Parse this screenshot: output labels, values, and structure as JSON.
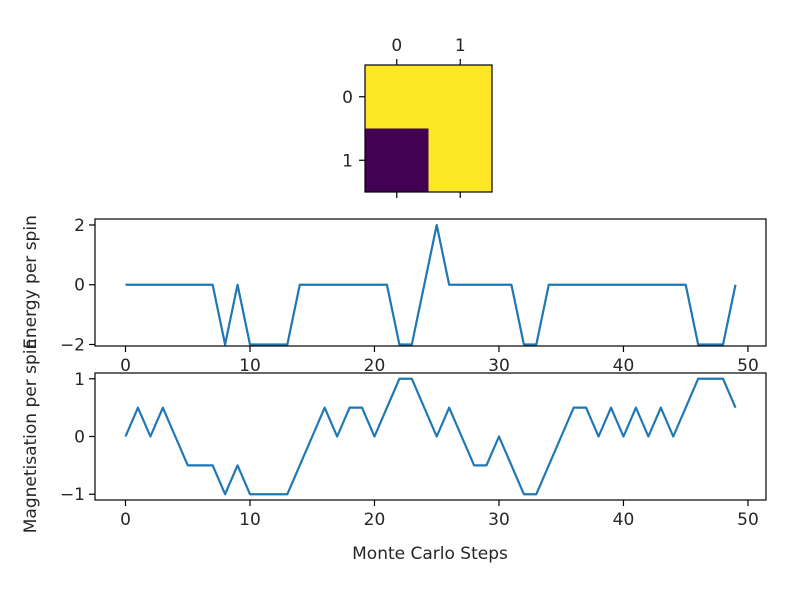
{
  "colors": {
    "low": "#440154",
    "high": "#fde725",
    "line": "#1f77b4"
  },
  "chart_data": [
    {
      "type": "heatmap",
      "title": "",
      "x_ticks": [
        "0",
        "1"
      ],
      "y_ticks": [
        "0",
        "1"
      ],
      "grid": false,
      "values": [
        [
          1,
          1
        ],
        [
          -1,
          1
        ]
      ]
    },
    {
      "type": "line",
      "title": "",
      "xlabel": "",
      "ylabel": "Energy per spin",
      "xlim": [
        -2.45,
        51.45
      ],
      "ylim": [
        -2.05,
        2.2
      ],
      "x_ticks": [
        0,
        10,
        20,
        30,
        40,
        50
      ],
      "y_ticks": [
        -2,
        0,
        2
      ],
      "grid": false,
      "series": [
        {
          "x": [
            0,
            1,
            2,
            3,
            4,
            5,
            6,
            7,
            8,
            9,
            10,
            11,
            12,
            13,
            14,
            15,
            16,
            17,
            18,
            19,
            20,
            21,
            22,
            23,
            24,
            25,
            26,
            27,
            28,
            29,
            30,
            31,
            32,
            33,
            34,
            35,
            36,
            37,
            38,
            39,
            40,
            41,
            42,
            43,
            44,
            45,
            46,
            47,
            48,
            49
          ],
          "values": [
            0,
            0,
            0,
            0,
            0,
            0,
            0,
            0,
            -2,
            0,
            -2,
            -2,
            -2,
            -2,
            0,
            0,
            0,
            0,
            0,
            0,
            0,
            0,
            -2,
            -2,
            0,
            2,
            0,
            0,
            0,
            0,
            0,
            0,
            -2,
            -2,
            0,
            0,
            0,
            0,
            0,
            0,
            0,
            0,
            0,
            0,
            0,
            0,
            -2,
            -2,
            -2,
            0
          ]
        }
      ]
    },
    {
      "type": "line",
      "title": "",
      "xlabel": "Monte Carlo Steps",
      "ylabel": "Magnetisation per spin",
      "xlim": [
        -2.45,
        51.45
      ],
      "ylim": [
        -1.1,
        1.1
      ],
      "x_ticks": [
        0,
        10,
        20,
        30,
        40,
        50
      ],
      "y_ticks": [
        -1,
        0,
        1
      ],
      "grid": false,
      "series": [
        {
          "x": [
            0,
            1,
            2,
            3,
            4,
            5,
            6,
            7,
            8,
            9,
            10,
            11,
            12,
            13,
            14,
            15,
            16,
            17,
            18,
            19,
            20,
            21,
            22,
            23,
            24,
            25,
            26,
            27,
            28,
            29,
            30,
            31,
            32,
            33,
            34,
            35,
            36,
            37,
            38,
            39,
            40,
            41,
            42,
            43,
            44,
            45,
            46,
            47,
            48,
            49
          ],
          "values": [
            0,
            0.5,
            0,
            0.5,
            0,
            -0.5,
            -0.5,
            -0.5,
            -1,
            -0.5,
            -1,
            -1,
            -1,
            -1,
            -0.5,
            0,
            0.5,
            0,
            0.5,
            0.5,
            0,
            0.5,
            1,
            1,
            0.5,
            0,
            0.5,
            0,
            -0.5,
            -0.5,
            0,
            -0.5,
            -1,
            -1,
            -0.5,
            0,
            0.5,
            0.5,
            0,
            0.5,
            0,
            0.5,
            0,
            0.5,
            0,
            0.5,
            1,
            1,
            1,
            0.5
          ]
        }
      ]
    }
  ]
}
